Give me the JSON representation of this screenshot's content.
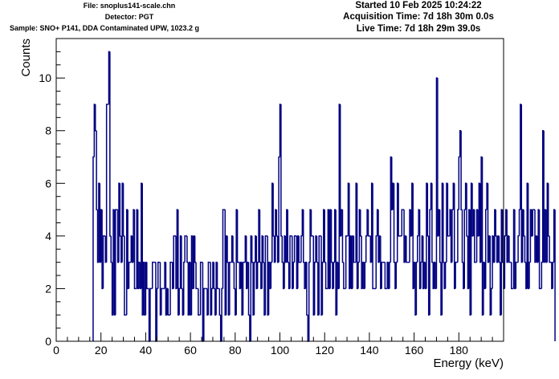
{
  "header": {
    "file": "File: snoplus141-scale.chn",
    "detector": "Detector: PGT",
    "sample": "Sample: SNO+ P141, DDA Contaminated UPW, 1023.2 g",
    "started": "Started 10 Feb 2025 10:24:22",
    "acquisition_time": "Acquisition Time: 7d 18h 30m 0.0s",
    "live_time": "Live Time: 7d 18h 29m 39.0s"
  },
  "colors": {
    "histogram": "#000080",
    "axes": "#000000",
    "background": "#ffffff"
  },
  "chart_data": {
    "type": "histogram",
    "title": "",
    "xlabel": "Energy (keV)",
    "ylabel": "Counts",
    "xlim": [
      0,
      200
    ],
    "ylim": [
      0,
      11.5
    ],
    "x_ticks": [
      0,
      20,
      40,
      60,
      80,
      100,
      120,
      140,
      160,
      180
    ],
    "y_ticks": [
      0,
      2,
      4,
      6,
      8,
      10
    ],
    "grid": false,
    "legend": "none",
    "bin_width": 0.5,
    "x_start": 16.5,
    "counts": [
      7,
      9,
      8,
      5,
      3,
      6,
      3,
      5,
      2,
      4,
      4,
      3,
      9,
      9,
      11,
      4,
      3,
      1,
      5,
      1,
      5,
      5,
      3,
      6,
      4,
      3,
      6,
      4,
      1,
      1,
      5,
      2,
      3,
      3,
      4,
      3,
      5,
      2,
      2,
      5,
      2,
      3,
      2,
      6,
      1,
      3,
      1,
      3,
      2,
      2,
      0,
      2,
      2,
      3,
      3,
      3,
      0,
      2,
      3,
      3,
      1,
      2,
      2,
      2,
      3,
      1,
      2,
      1,
      1,
      3,
      3,
      2,
      4,
      4,
      2,
      5,
      1,
      2,
      4,
      2,
      1,
      3,
      4,
      4,
      3,
      1,
      3,
      1,
      4,
      2,
      4,
      3,
      2,
      2,
      1,
      1,
      3,
      3,
      0,
      2,
      2,
      2,
      1,
      3,
      3,
      1,
      2,
      3,
      2,
      1,
      3,
      2,
      2,
      1,
      0,
      2,
      5,
      5,
      1,
      4,
      3,
      1,
      3,
      3,
      4,
      3,
      2,
      1,
      5,
      3,
      3,
      2,
      3,
      1,
      3,
      3,
      4,
      2,
      3,
      1,
      0,
      4,
      3,
      1,
      3,
      4,
      2,
      3,
      5,
      3,
      2,
      4,
      3,
      1,
      4,
      4,
      1,
      3,
      2,
      3,
      6,
      4,
      3,
      5,
      4,
      3,
      7,
      9,
      4,
      3,
      2,
      4,
      3,
      5,
      3,
      2,
      4,
      4,
      2,
      3,
      4,
      4,
      2,
      4,
      3,
      3,
      4,
      5,
      3,
      2,
      3,
      1,
      0,
      3,
      5,
      4,
      4,
      1,
      3,
      4,
      3,
      1,
      4,
      4,
      1,
      3,
      5,
      3,
      2,
      2,
      5,
      2,
      5,
      3,
      2,
      3,
      5,
      1,
      3,
      2,
      9,
      4,
      5,
      3,
      2,
      2,
      4,
      4,
      6,
      2,
      4,
      2,
      4,
      3,
      3,
      6,
      2,
      3,
      5,
      4,
      2,
      3,
      2,
      3,
      4,
      5,
      4,
      4,
      3,
      6,
      2,
      2,
      2,
      4,
      5,
      3,
      4,
      2,
      3,
      3,
      3,
      2,
      2,
      3,
      2,
      3,
      7,
      5,
      6,
      3,
      2,
      3,
      6,
      4,
      4,
      4,
      5,
      5,
      3,
      4,
      3,
      3,
      3,
      5,
      4,
      6,
      2,
      3,
      1,
      3,
      4,
      5,
      2,
      3,
      4,
      2,
      3,
      2,
      6,
      4,
      1,
      5,
      6,
      3,
      2,
      3,
      2,
      10,
      4,
      5,
      3,
      1,
      6,
      3,
      2,
      3,
      6,
      4,
      4,
      5,
      3,
      5,
      6,
      2,
      3,
      3,
      5,
      7,
      8,
      5,
      3,
      2,
      5,
      6,
      4,
      2,
      5,
      1,
      6,
      4,
      5,
      3,
      3,
      5,
      4,
      6,
      3,
      7,
      1,
      3,
      2,
      5,
      6,
      3,
      4,
      1,
      2,
      4,
      3,
      5,
      4,
      3,
      4,
      3,
      1,
      5,
      3,
      2,
      4,
      5,
      3,
      4,
      3,
      3,
      2,
      2,
      5,
      2,
      3,
      3,
      4,
      5,
      9,
      3,
      5,
      4,
      3,
      2,
      6,
      2,
      3,
      5,
      4,
      5,
      5,
      3,
      4,
      3,
      5,
      2,
      2,
      3,
      8,
      3,
      5,
      3,
      6,
      4,
      3,
      3,
      2,
      3,
      5
    ]
  }
}
